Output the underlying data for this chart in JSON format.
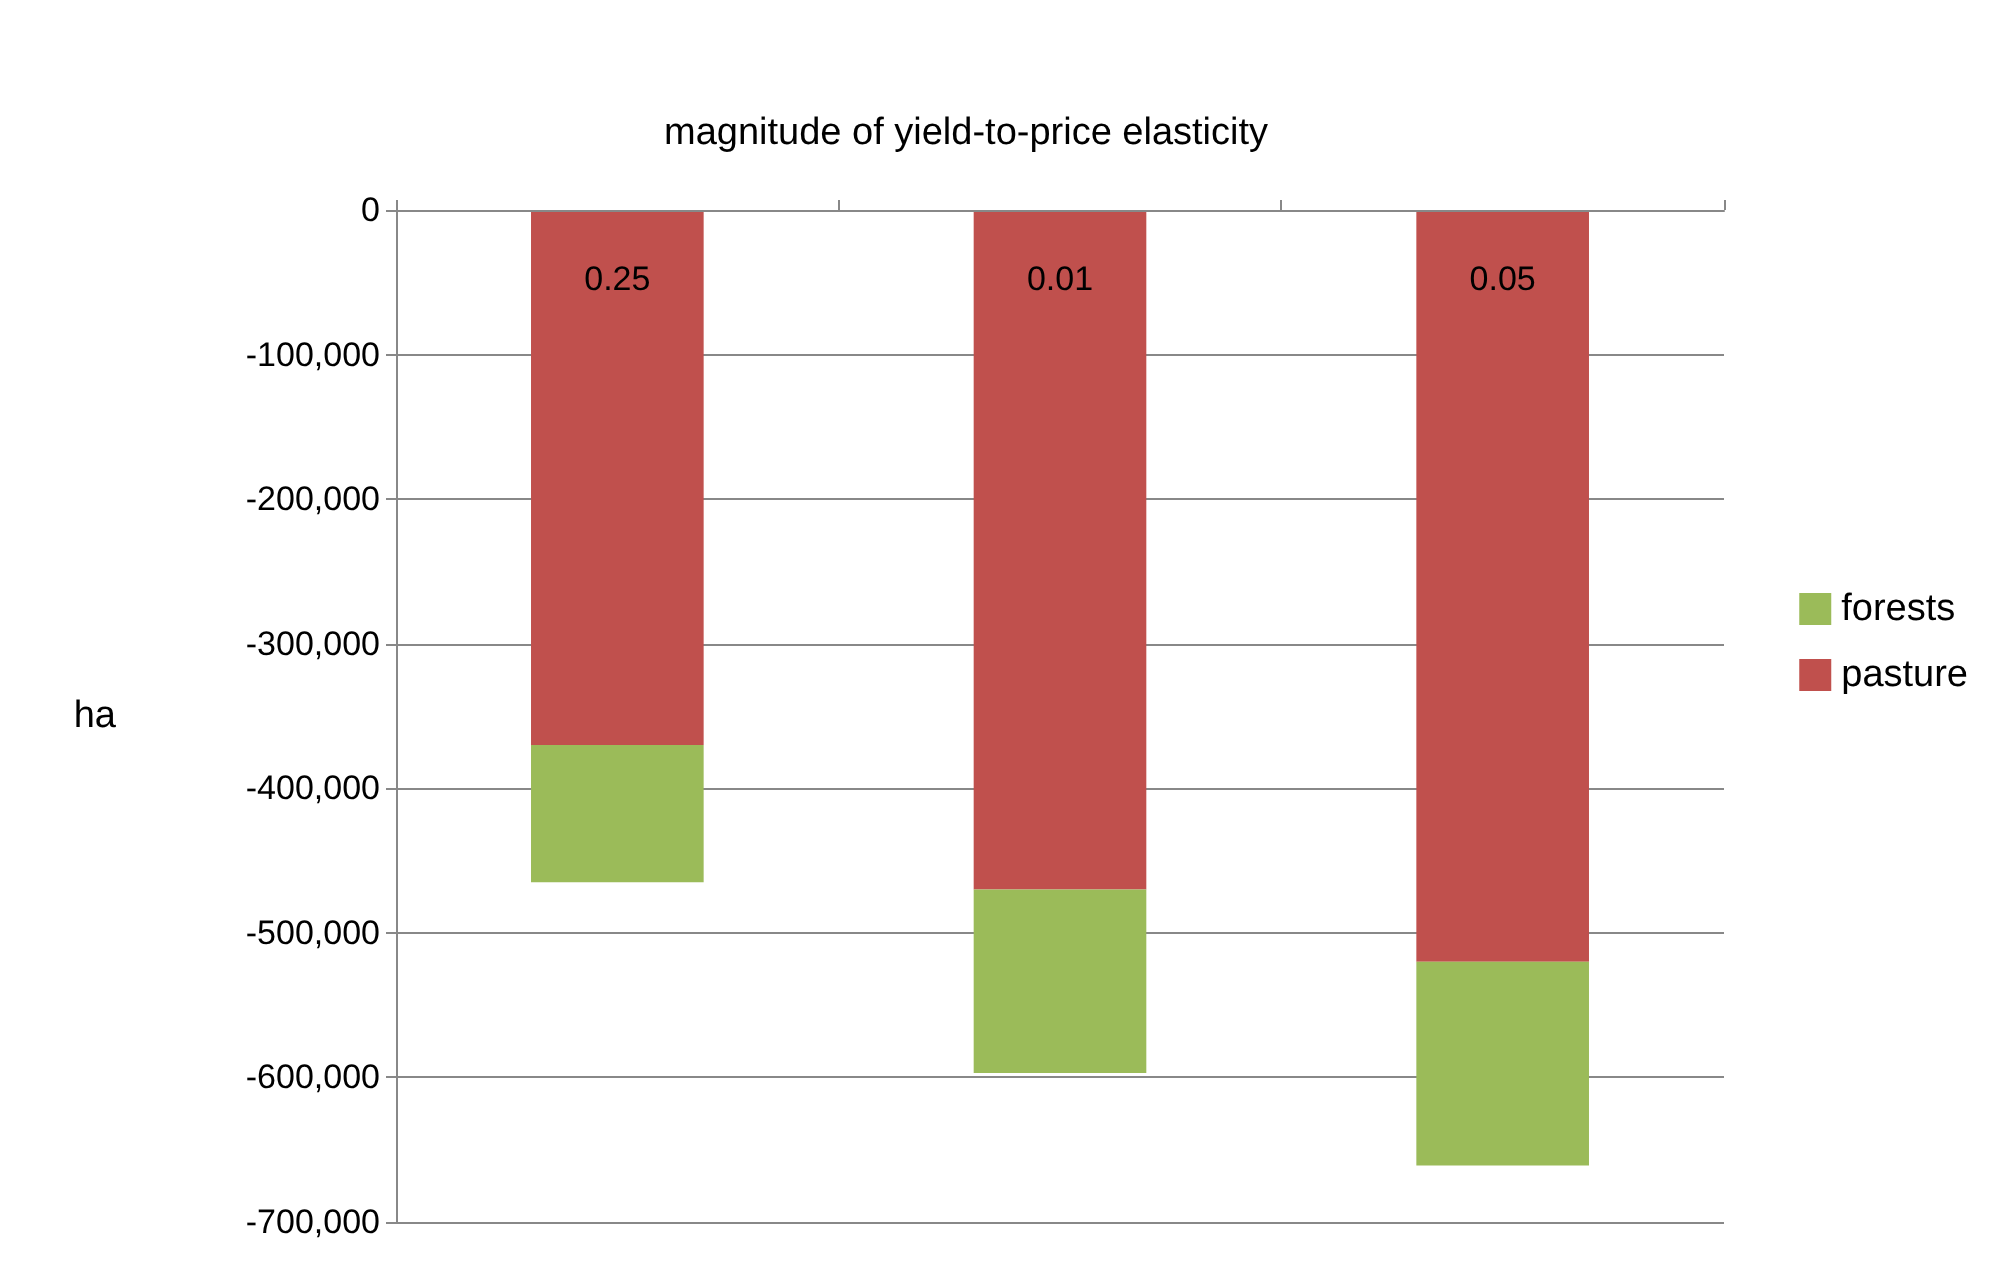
{
  "chart_data": {
    "type": "bar",
    "xlabel": "magnitude of yield-to-price elasticity",
    "ylabel": "ha",
    "categories": [
      "0.25",
      "0.01",
      "0.05"
    ],
    "stacked": true,
    "series": [
      {
        "name": "pasture",
        "color": "#c0504d",
        "values": [
          -370000,
          -470000,
          -520000
        ]
      },
      {
        "name": "forests",
        "color": "#9bbb59",
        "values": [
          -95000,
          -127000,
          -141000
        ]
      }
    ],
    "ylim": [
      -700000,
      0
    ],
    "yticks": [
      {
        "value": -700000,
        "label": "-700,000"
      },
      {
        "value": -600000,
        "label": "-600,000"
      },
      {
        "value": -500000,
        "label": "-500,000"
      },
      {
        "value": -400000,
        "label": "-400,000"
      },
      {
        "value": -300000,
        "label": "-300,000"
      },
      {
        "value": -200000,
        "label": "-200,000"
      },
      {
        "value": -100000,
        "label": "-100,000"
      },
      0
    ],
    "grid": "y",
    "legend": "right"
  }
}
